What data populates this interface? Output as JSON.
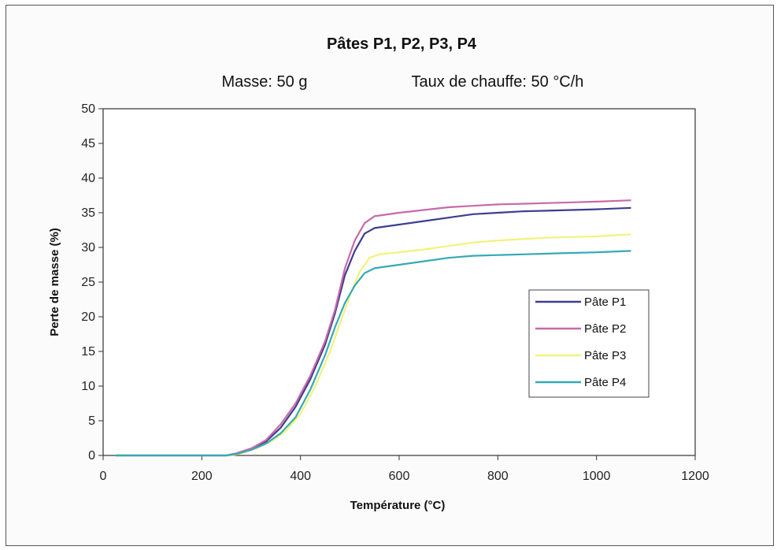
{
  "chart_data": {
    "type": "line",
    "title": "Pâtes P1, P2, P3, P4",
    "subtitle_mass": "Masse:  50 g",
    "subtitle_rate": "Taux de chauffe:  50 °C/h",
    "xlabel": "Température (°C)",
    "ylabel": "Perte de masse (%)",
    "xlim": [
      0,
      1200
    ],
    "ylim": [
      0,
      50
    ],
    "xticks": [
      0,
      200,
      400,
      600,
      800,
      1000,
      1200
    ],
    "yticks": [
      0,
      5,
      10,
      15,
      20,
      25,
      30,
      35,
      40,
      45,
      50
    ],
    "grid": false,
    "legend_position": "right",
    "series": [
      {
        "name": "Pâte P1",
        "color": "#3d3d8f",
        "points": [
          [
            25,
            0
          ],
          [
            100,
            0
          ],
          [
            200,
            0
          ],
          [
            250,
            0
          ],
          [
            270,
            0.3
          ],
          [
            300,
            1
          ],
          [
            330,
            2
          ],
          [
            360,
            4
          ],
          [
            390,
            7
          ],
          [
            420,
            11
          ],
          [
            450,
            16
          ],
          [
            470,
            20.5
          ],
          [
            490,
            26
          ],
          [
            510,
            29.5
          ],
          [
            530,
            32
          ],
          [
            550,
            32.8
          ],
          [
            600,
            33.3
          ],
          [
            650,
            33.8
          ],
          [
            700,
            34.3
          ],
          [
            750,
            34.8
          ],
          [
            800,
            35
          ],
          [
            850,
            35.2
          ],
          [
            900,
            35.3
          ],
          [
            950,
            35.4
          ],
          [
            1000,
            35.5
          ],
          [
            1070,
            35.7
          ]
        ]
      },
      {
        "name": "Pâte P2",
        "color": "#c86aa8",
        "points": [
          [
            25,
            0
          ],
          [
            100,
            0
          ],
          [
            200,
            0
          ],
          [
            250,
            0
          ],
          [
            270,
            0.3
          ],
          [
            300,
            1
          ],
          [
            330,
            2.2
          ],
          [
            360,
            4.5
          ],
          [
            390,
            7.5
          ],
          [
            420,
            11.5
          ],
          [
            450,
            16.5
          ],
          [
            470,
            21
          ],
          [
            490,
            27
          ],
          [
            510,
            31
          ],
          [
            530,
            33.5
          ],
          [
            550,
            34.5
          ],
          [
            600,
            35
          ],
          [
            650,
            35.4
          ],
          [
            700,
            35.8
          ],
          [
            750,
            36
          ],
          [
            800,
            36.2
          ],
          [
            850,
            36.3
          ],
          [
            900,
            36.4
          ],
          [
            950,
            36.5
          ],
          [
            1000,
            36.6
          ],
          [
            1070,
            36.8
          ]
        ]
      },
      {
        "name": "Pâte P3",
        "color": "#f2f27a",
        "points": [
          [
            25,
            0
          ],
          [
            100,
            0
          ],
          [
            200,
            0
          ],
          [
            260,
            0
          ],
          [
            280,
            0.3
          ],
          [
            310,
            1
          ],
          [
            340,
            2
          ],
          [
            370,
            3.5
          ],
          [
            400,
            6
          ],
          [
            430,
            10
          ],
          [
            460,
            15
          ],
          [
            480,
            19
          ],
          [
            500,
            23
          ],
          [
            520,
            26.5
          ],
          [
            540,
            28.5
          ],
          [
            560,
            29
          ],
          [
            600,
            29.3
          ],
          [
            650,
            29.7
          ],
          [
            700,
            30.2
          ],
          [
            750,
            30.7
          ],
          [
            800,
            31
          ],
          [
            850,
            31.2
          ],
          [
            900,
            31.4
          ],
          [
            950,
            31.5
          ],
          [
            1000,
            31.6
          ],
          [
            1070,
            31.9
          ]
        ]
      },
      {
        "name": "Pâte P4",
        "color": "#35a9b8",
        "points": [
          [
            25,
            0
          ],
          [
            100,
            0
          ],
          [
            200,
            0
          ],
          [
            250,
            0
          ],
          [
            270,
            0.2
          ],
          [
            300,
            0.8
          ],
          [
            330,
            1.7
          ],
          [
            360,
            3.2
          ],
          [
            390,
            5.5
          ],
          [
            420,
            9.5
          ],
          [
            450,
            14.5
          ],
          [
            470,
            18.5
          ],
          [
            490,
            22
          ],
          [
            510,
            24.5
          ],
          [
            530,
            26.3
          ],
          [
            550,
            27
          ],
          [
            600,
            27.5
          ],
          [
            650,
            28
          ],
          [
            700,
            28.5
          ],
          [
            750,
            28.8
          ],
          [
            800,
            28.9
          ],
          [
            850,
            29
          ],
          [
            900,
            29.1
          ],
          [
            950,
            29.2
          ],
          [
            1000,
            29.3
          ],
          [
            1070,
            29.5
          ]
        ]
      }
    ]
  }
}
